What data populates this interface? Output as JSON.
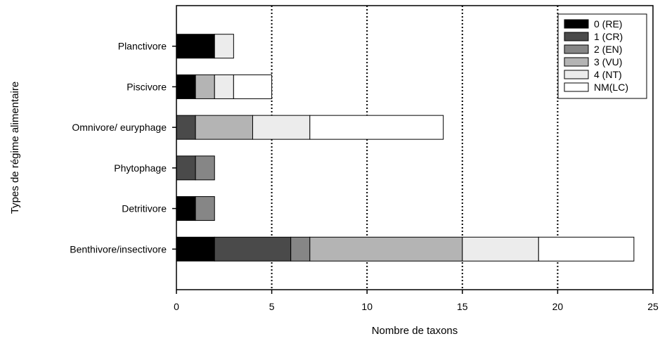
{
  "chart_data": {
    "type": "bar",
    "orientation": "horizontal",
    "stacked": true,
    "title": "",
    "xlabel": "Nombre de taxons",
    "ylabel": "Types de régime alimentaire",
    "xlim": [
      0,
      25
    ],
    "xticks": [
      "0",
      "5",
      "10",
      "15",
      "20",
      "25"
    ],
    "grid": "vertical dotted lines at x = 5, 10, 15, 20",
    "legend_position": "top-right",
    "categories": [
      "Planctivore",
      "Piscivore",
      "Omnivore/ euryphage",
      "Phytophage",
      "Detritivore",
      "Benthivore/insectivore"
    ],
    "series": [
      {
        "name": "0 (RE)",
        "color": "#000000",
        "values": [
          2,
          1,
          0,
          0,
          1,
          2
        ]
      },
      {
        "name": "1 (CR)",
        "color": "#4a4a4a",
        "values": [
          0,
          0,
          1,
          1,
          0,
          4
        ]
      },
      {
        "name": "2 (EN)",
        "color": "#868686",
        "values": [
          0,
          0,
          0,
          1,
          1,
          1
        ]
      },
      {
        "name": "3 (VU)",
        "color": "#b4b4b4",
        "values": [
          0,
          1,
          3,
          0,
          0,
          8
        ]
      },
      {
        "name": "4 (NT)",
        "color": "#ececec",
        "values": [
          1,
          1,
          3,
          0,
          0,
          4
        ]
      },
      {
        "name": "NM(LC)",
        "color": "#ffffff",
        "values": [
          0,
          2,
          7,
          0,
          0,
          5
        ]
      }
    ]
  }
}
